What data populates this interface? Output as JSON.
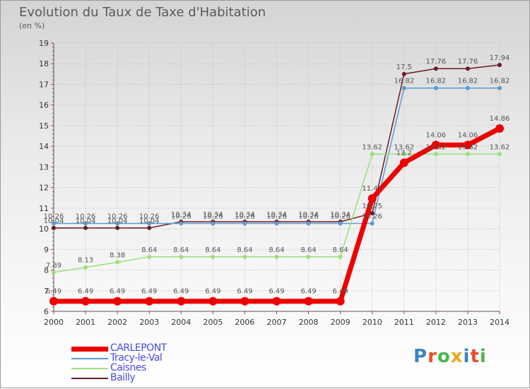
{
  "title": "Evolution du Taux de Taxe d'Habitation",
  "unit": "(en %)",
  "brand": "Proxiti",
  "brand_colors": [
    "#3b83c6",
    "#e94d25",
    "#49b74a",
    "#f2a51f",
    "#3b83c6",
    "#e94d25",
    "#49b74a"
  ],
  "chart_data": {
    "type": "line",
    "x": [
      "2000",
      "2001",
      "2002",
      "2003",
      "2004",
      "2005",
      "2006",
      "2007",
      "2008",
      "2009",
      "2010",
      "2011",
      "2012",
      "2013",
      "2014"
    ],
    "ylim": [
      6,
      19
    ],
    "yticks": [
      "6",
      "7",
      "8",
      "9",
      "10",
      "11",
      "12",
      "13",
      "14",
      "15",
      "16",
      "17",
      "18",
      "19"
    ],
    "grid": true,
    "legend_position": "bottom-left",
    "series": [
      {
        "name": "Bailly",
        "color": "#6b1a22",
        "width": 1.5,
        "marker": 3,
        "values": [
          10.04,
          10.04,
          10.04,
          10.04,
          10.34,
          10.34,
          10.34,
          10.34,
          10.34,
          10.34,
          10.75,
          17.5,
          17.76,
          17.76,
          17.94
        ],
        "labels": [
          "10.04",
          "10.04",
          "10.04",
          "10.04",
          "10.34",
          "10.34",
          "10.34",
          "10.34",
          "10.34",
          "10.34",
          "10.75",
          "17.5",
          "17.76",
          "17.76",
          "17.94"
        ]
      },
      {
        "name": "Tracy-le-Val",
        "color": "#5b9ad5",
        "width": 1.5,
        "marker": 3,
        "values": [
          10.26,
          10.26,
          10.26,
          10.26,
          10.26,
          10.26,
          10.26,
          10.26,
          10.26,
          10.26,
          10.26,
          16.82,
          16.82,
          16.82,
          16.82
        ],
        "labels": [
          "10.26",
          "10.26",
          "10.26",
          "10.26",
          "10.26",
          "10.26",
          "10.26",
          "10.26",
          "10.26",
          "10.26",
          "10.26",
          "16.82",
          "16.82",
          "16.82",
          "16.82"
        ]
      },
      {
        "name": "Caisnes",
        "color": "#99e07a",
        "width": 1.5,
        "marker": 3,
        "values": [
          7.89,
          8.13,
          8.38,
          8.64,
          8.64,
          8.64,
          8.64,
          8.64,
          8.64,
          8.64,
          13.62,
          13.62,
          13.62,
          13.62,
          13.62
        ],
        "labels": [
          "7.89",
          "8.13",
          "8.38",
          "8.64",
          "8.64",
          "8.64",
          "8.64",
          "8.64",
          "8.64",
          "8.64",
          "13.62",
          "13.62",
          "13.62",
          "13.62",
          "13.62"
        ]
      },
      {
        "name": "CARLEPONT",
        "color": "#ee0000",
        "width": 7,
        "marker": 6,
        "values": [
          6.49,
          6.49,
          6.49,
          6.49,
          6.49,
          6.49,
          6.49,
          6.49,
          6.49,
          6.49,
          11.47,
          13.2,
          14.06,
          14.06,
          14.86
        ],
        "labels": [
          "6.49",
          "6.49",
          "6.49",
          "6.49",
          "6.49",
          "6.49",
          "6.49",
          "6.49",
          "6.49",
          "6.49",
          "11.47",
          "13.2",
          "14.06",
          "14.06",
          "14.86"
        ]
      }
    ],
    "legend": [
      {
        "name": "CARLEPONT",
        "color": "#ee0000",
        "thickness": 7
      },
      {
        "name": "Tracy-le-Val",
        "color": "#5b9ad5",
        "thickness": 2
      },
      {
        "name": "Caisnes",
        "color": "#99e07a",
        "thickness": 2
      },
      {
        "name": "Bailly",
        "color": "#6b1a22",
        "thickness": 2
      }
    ]
  }
}
